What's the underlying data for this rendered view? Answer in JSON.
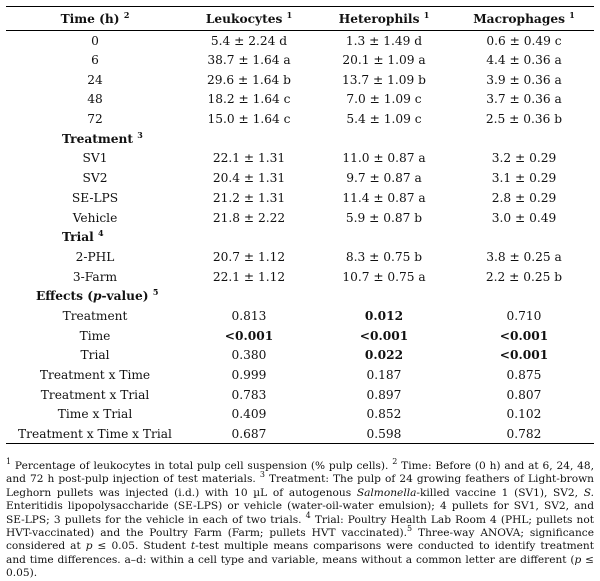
{
  "header": {
    "time": "Time (h)",
    "time_sup": "2",
    "leukocytes": "Leukocytes",
    "leukocytes_sup": "1",
    "heterophils": "Heterophils",
    "heterophils_sup": "1",
    "macrophages": "Macrophages",
    "macrophages_sup": "1"
  },
  "time_rows": [
    {
      "label": "0",
      "leu": "5.4 ± 2.24 d",
      "het": "1.3 ± 1.49 d",
      "mac": "0.6 ± 0.49 c"
    },
    {
      "label": "6",
      "leu": "38.7 ± 1.64 a",
      "het": "20.1 ± 1.09 a",
      "mac": "4.4 ± 0.36 a"
    },
    {
      "label": "24",
      "leu": "29.6 ± 1.64 b",
      "het": "13.7 ± 1.09 b",
      "mac": "3.9 ± 0.36 a"
    },
    {
      "label": "48",
      "leu": "18.2 ± 1.64 c",
      "het": "7.0 ± 1.09 c",
      "mac": "3.7 ± 0.36 a"
    },
    {
      "label": "72",
      "leu": "15.0 ± 1.64 c",
      "het": "5.4 ± 1.09 c",
      "mac": "2.5 ± 0.36 b"
    }
  ],
  "treatment_section": {
    "label": "Treatment",
    "sup": "3"
  },
  "treatment_rows": [
    {
      "label": "SV1",
      "leu": "22.1 ± 1.31",
      "het": "11.0 ± 0.87 a",
      "mac": "3.2 ± 0.29"
    },
    {
      "label": "SV2",
      "leu": "20.4 ± 1.31",
      "het": "9.7 ± 0.87 a",
      "mac": "3.1 ± 0.29"
    },
    {
      "label": "SE-LPS",
      "leu": "21.2 ± 1.31",
      "het": "11.4 ± 0.87 a",
      "mac": "2.8 ± 0.29"
    },
    {
      "label": "Vehicle",
      "leu": "21.8 ± 2.22",
      "het": "5.9 ± 0.87 b",
      "mac": "3.0 ± 0.49"
    }
  ],
  "trial_section": {
    "label": "Trial",
    "sup": "4"
  },
  "trial_rows": [
    {
      "label": "2-PHL",
      "leu": "20.7 ± 1.12",
      "het": "8.3 ± 0.75 b",
      "mac": "3.8 ± 0.25 a"
    },
    {
      "label": "3-Farm",
      "leu": "22.1 ± 1.12",
      "het": "10.7 ± 0.75 a",
      "mac": "2.2 ± 0.25 b"
    }
  ],
  "effects_section": {
    "label_pre": "Effects (",
    "label_it": "p",
    "label_post": "-value)",
    "sup": "5"
  },
  "effects_rows": [
    {
      "label": "Treatment",
      "leu": "0.813",
      "het": "0.012",
      "mac": "0.710"
    },
    {
      "label": "Time",
      "leu": "<0.001",
      "het": "<0.001",
      "mac": "<0.001"
    },
    {
      "label": "Trial",
      "leu": "0.380",
      "het": "0.022",
      "mac": "<0.001"
    },
    {
      "label": "Treatment x Time",
      "leu": "0.999",
      "het": "0.187",
      "mac": "0.875"
    },
    {
      "label": "Treatment x Trial",
      "leu": "0.783",
      "het": "0.897",
      "mac": "0.807"
    },
    {
      "label": "Time x Trial",
      "leu": "0.409",
      "het": "0.852",
      "mac": "0.102"
    },
    {
      "label": "Treatment x Time x Trial",
      "leu": "0.687",
      "het": "0.598",
      "mac": "0.782"
    }
  ],
  "footnote": {
    "n1_sup": "1",
    "n1": " Percentage of leukocytes in total pulp cell suspension (% pulp cells). ",
    "n2_sup": "2",
    "n2": " Time: Before (0 h) and at 6, 24, 48, and 72 h post-pulp injection of test materials. ",
    "n3_sup": "3",
    "n3a": " Treatment: The pulp of 24 growing feathers of Light-brown Leghorn pullets was injected (i.d.) with 10 µL of autogenous ",
    "n3_it1": "Salmonella",
    "n3b": "-killed vaccine 1 (SV1), SV2, ",
    "n3_it2": "S.",
    "n3c": " Enteritidis lipopolysaccharide (SE-LPS) or vehicle (water-oil-water emulsion); 4 pullets for SV1, SV2, and SE-LPS; 3 pullets for the vehicle in each of two trials. ",
    "n4_sup": "4",
    "n4": " Trial: Poultry Health Lab Room 4 (PHL; pullets not HVT-vaccinated) and the Poultry Farm (Farm; pullets HVT vaccinated).",
    "n5_sup": "5",
    "n5a": " Three-way ANOVA; significance considered at ",
    "n5_it1": "p",
    "n5b": " ≤ 0.05. Student ",
    "n5_it2": "t",
    "n5c": "-test multiple means comparisons were conducted to identify treatment and time differences. a–d: within a cell type and variable, means without a common letter are different (",
    "n5_it3": "p",
    "n5d": " ≤ 0.05)."
  }
}
